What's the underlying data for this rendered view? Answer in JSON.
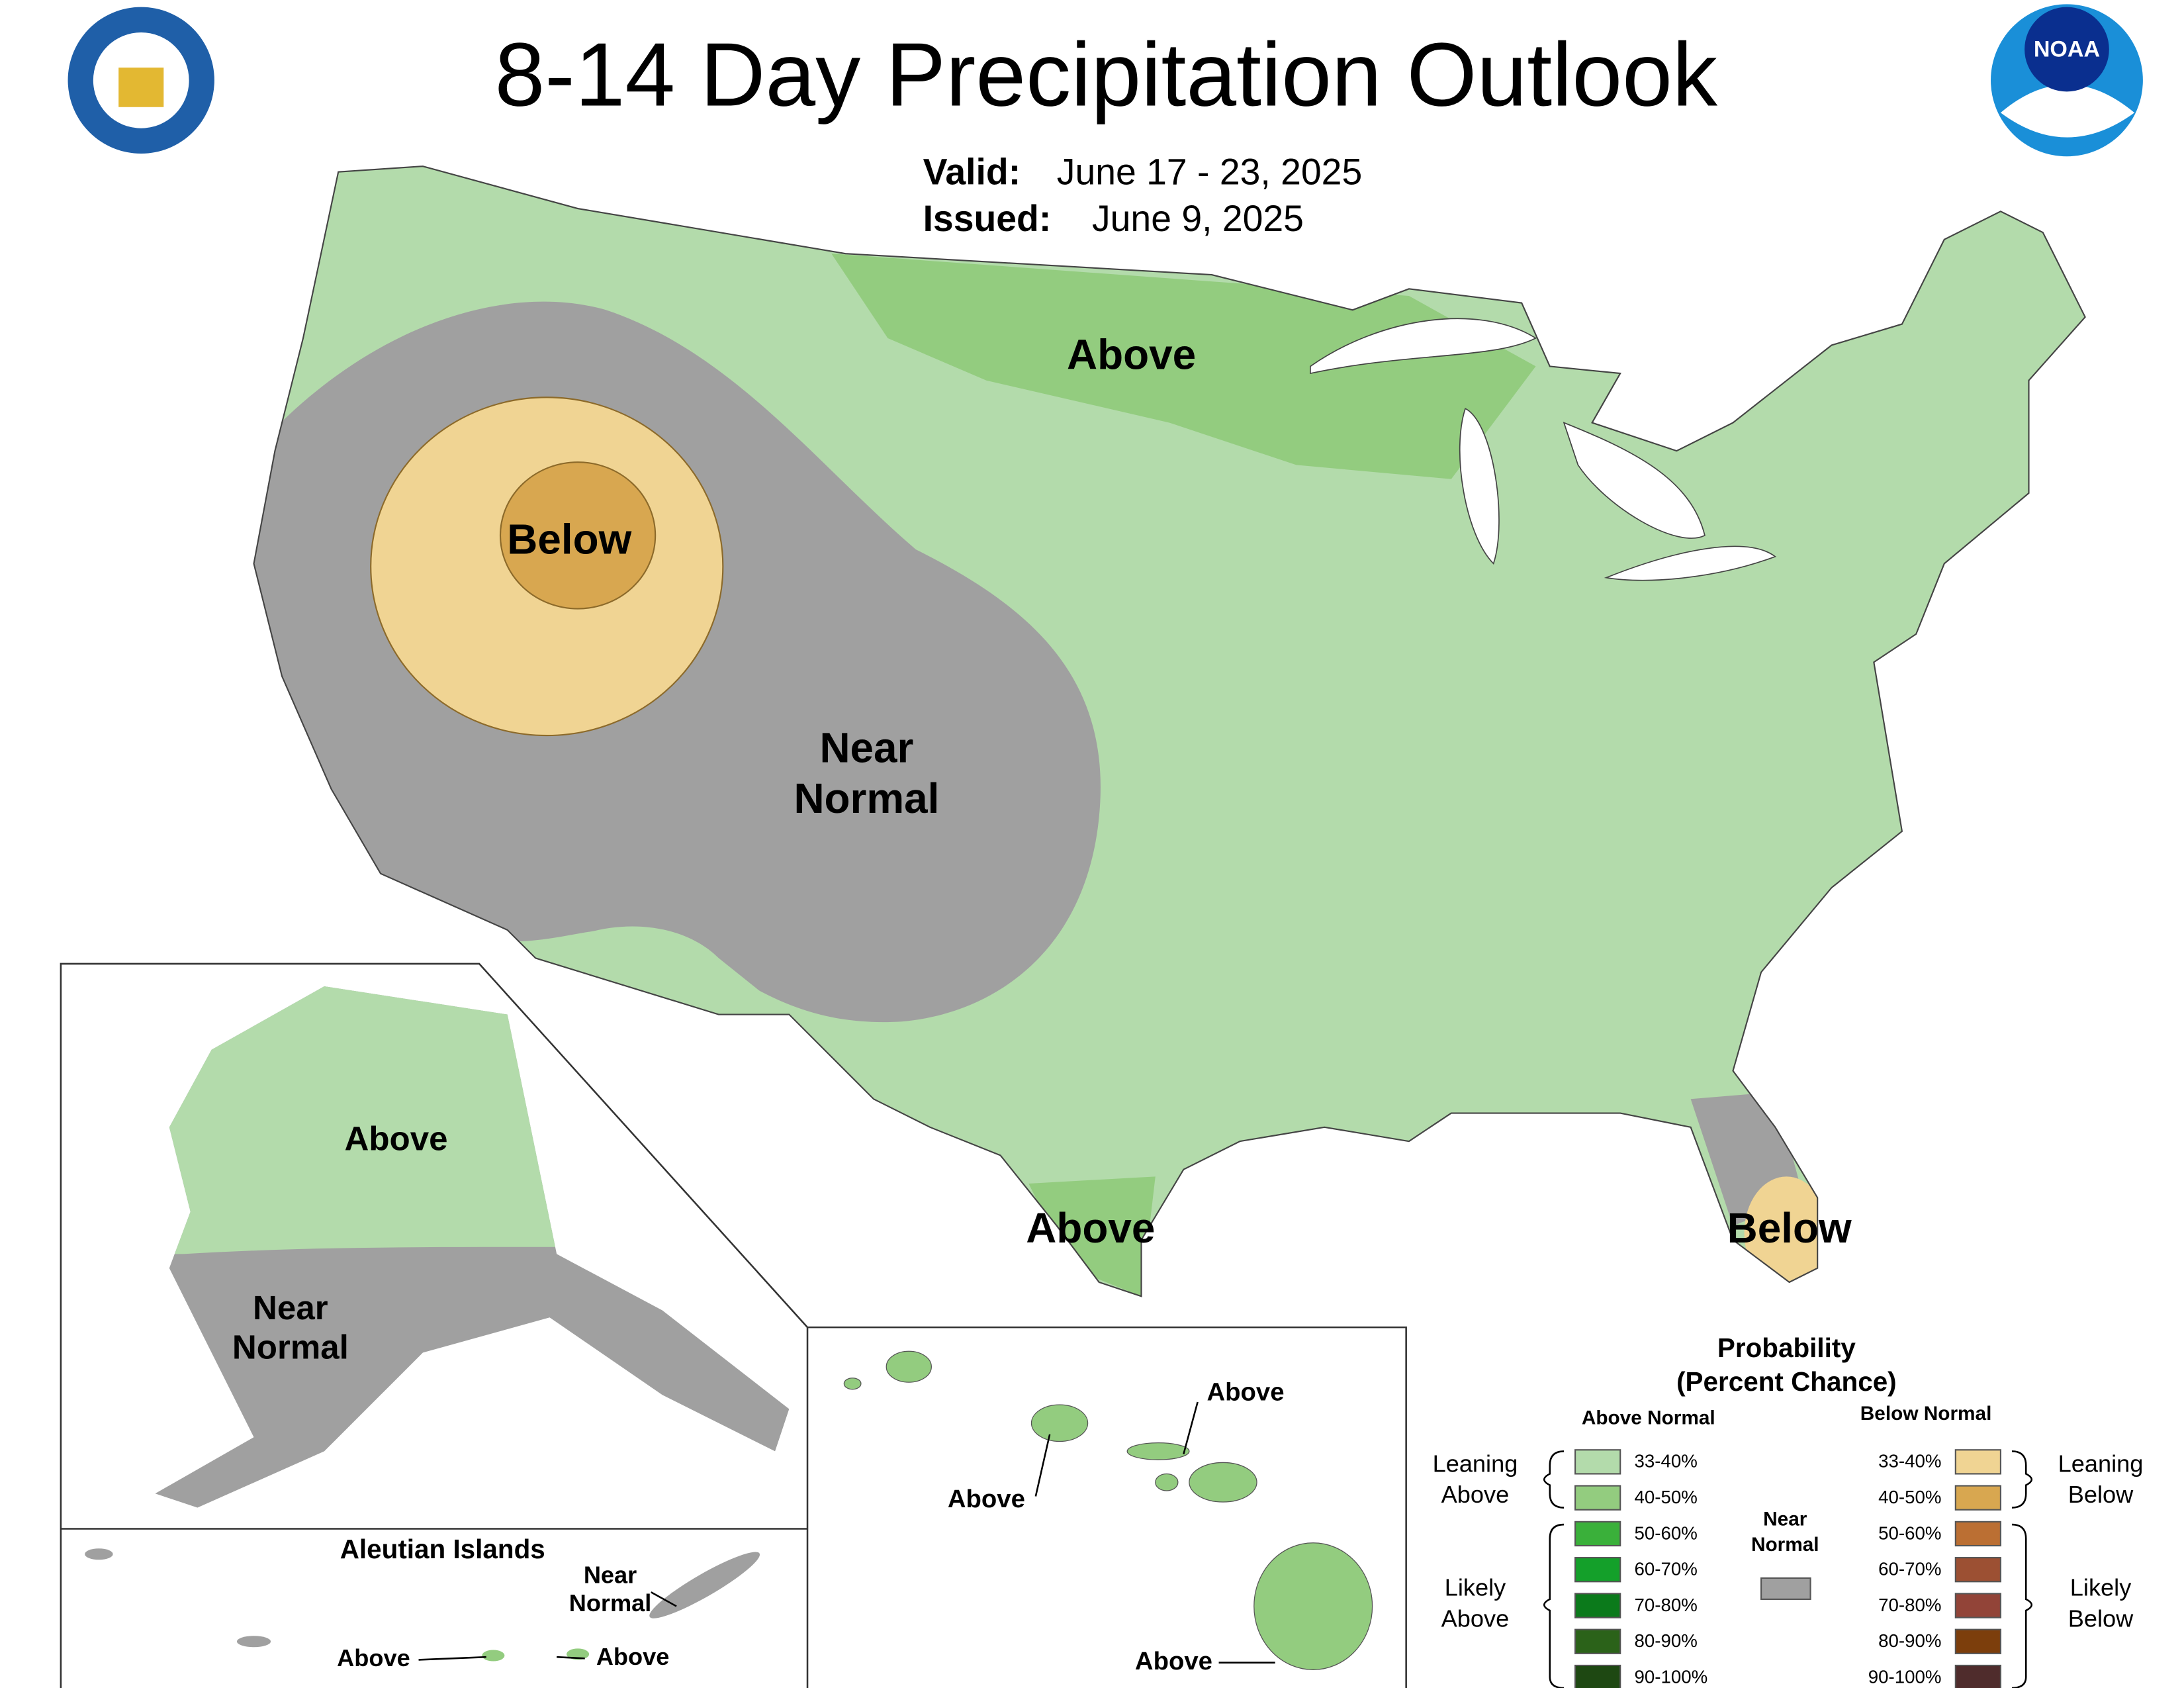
{
  "header": {
    "title": "8-14 Day Precipitation Outlook",
    "valid_label": "Valid:",
    "valid": "June 17 - 23, 2025",
    "issued_label": "Issued:",
    "issued": "June 9, 2025",
    "noaa": "NOAA"
  },
  "conus_labels": [
    [
      "Above"
    ],
    [
      "Below"
    ],
    [
      "Near",
      "Normal"
    ],
    [
      "Above"
    ],
    [
      "Below"
    ]
  ],
  "alaska_labels": [
    [
      "Above"
    ],
    [
      "Near",
      "Normal"
    ]
  ],
  "aleutian": {
    "title": "Aleutian Islands",
    "labels": [
      [
        "Near",
        "Normal"
      ],
      [
        "Above"
      ],
      [
        "Above"
      ]
    ]
  },
  "hawaii_labels": [
    [
      "Above"
    ],
    [
      "Above"
    ],
    [
      "Above"
    ]
  ],
  "legend": {
    "title": [
      "Probability",
      "(Percent Chance)"
    ],
    "above_header": "Above Normal",
    "below_header": "Below Normal",
    "near_normal": [
      "Near",
      "Normal"
    ],
    "near_color": "#a0a0a0",
    "above": [
      {
        "range": "33-40%",
        "color": "#b3dbab"
      },
      {
        "range": "40-50%",
        "color": "#93cc7f"
      },
      {
        "range": "50-60%",
        "color": "#3ab03a"
      },
      {
        "range": "60-70%",
        "color": "#14a02a"
      },
      {
        "range": "70-80%",
        "color": "#0b7a1b"
      },
      {
        "range": "80-90%",
        "color": "#2b6219"
      },
      {
        "range": "90-100%",
        "color": "#1e4812"
      }
    ],
    "below": [
      {
        "range": "33-40%",
        "color": "#f0d493"
      },
      {
        "range": "40-50%",
        "color": "#d8a750"
      },
      {
        "range": "50-60%",
        "color": "#bb6f33"
      },
      {
        "range": "60-70%",
        "color": "#9c5033"
      },
      {
        "range": "70-80%",
        "color": "#924438"
      },
      {
        "range": "80-90%",
        "color": "#7c3e0c"
      },
      {
        "range": "90-100%",
        "color": "#4f2c2c"
      }
    ],
    "leaning_above": [
      "Leaning",
      "Above"
    ],
    "likely_above": [
      "Likely",
      "Above"
    ],
    "leaning_below": [
      "Leaning",
      "Below"
    ],
    "likely_below": [
      "Likely",
      "Below"
    ]
  }
}
